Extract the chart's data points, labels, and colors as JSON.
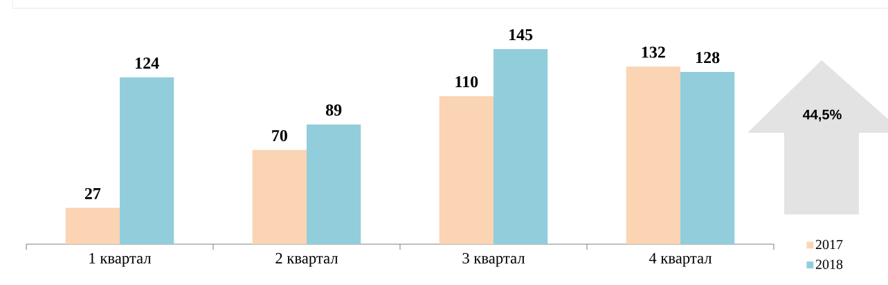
{
  "chart_data": {
    "type": "bar",
    "categories": [
      "1 квартал",
      "2 квартал",
      "3 квартал",
      "4 квартал"
    ],
    "series": [
      {
        "name": "2017",
        "color": "#fbd4b4",
        "values": [
          27,
          70,
          110,
          132
        ]
      },
      {
        "name": "2018",
        "color": "#92cddc",
        "values": [
          124,
          89,
          145,
          128
        ]
      }
    ],
    "data_labels": true,
    "legend": "bottom right",
    "annotations": [
      "44,5%"
    ]
  }
}
